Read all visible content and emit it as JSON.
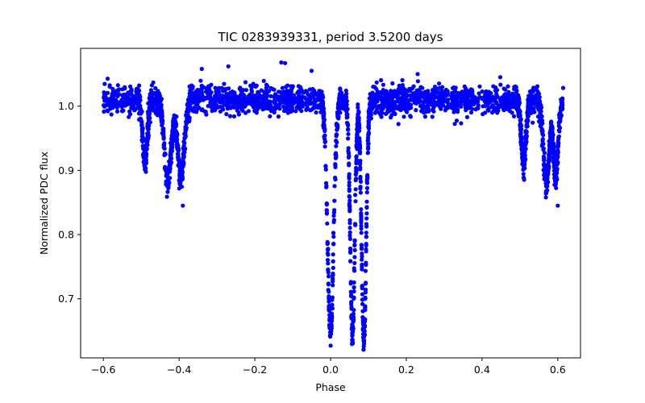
{
  "chart_data": {
    "type": "scatter",
    "title": "TIC 0283939331, period 3.5200 days",
    "xlabel": "Phase",
    "ylabel": "Normalized PDC flux",
    "xlim": [
      -0.66,
      0.66
    ],
    "ylim": [
      0.608,
      1.09
    ],
    "xticks": [
      -0.6,
      -0.4,
      -0.2,
      0.0,
      0.2,
      0.4,
      0.6
    ],
    "xtick_labels": [
      "−0.6",
      "−0.4",
      "−0.2",
      "0.0",
      "0.2",
      "0.4",
      "0.6"
    ],
    "yticks": [
      0.7,
      0.8,
      0.9,
      1.0
    ],
    "ytick_labels": [
      "0.7",
      "0.8",
      "0.9",
      "1.0"
    ],
    "grid": false,
    "series": [
      {
        "name": "flux",
        "color": "#0000ff",
        "baseline": 1.01,
        "phase_range": [
          -0.6,
          0.6
        ],
        "dips": [
          {
            "center": -0.49,
            "depth": 0.1,
            "width": 0.006
          },
          {
            "center": -0.43,
            "depth": 0.13,
            "width": 0.009
          },
          {
            "center": -0.395,
            "depth": 0.12,
            "width": 0.009
          },
          {
            "center": 0.0,
            "depth": 0.36,
            "width": 0.008
          },
          {
            "center": 0.058,
            "depth": 0.37,
            "width": 0.006
          },
          {
            "center": 0.088,
            "depth": 0.38,
            "width": 0.006
          },
          {
            "center": 0.51,
            "depth": 0.1,
            "width": 0.006
          },
          {
            "center": 0.57,
            "depth": 0.13,
            "width": 0.008
          },
          {
            "center": 0.595,
            "depth": 0.12,
            "width": 0.006
          }
        ],
        "outliers": [
          {
            "x": -0.13,
            "y": 1.068
          },
          {
            "x": -0.12,
            "y": 1.067
          },
          {
            "x": -0.34,
            "y": 1.058
          },
          {
            "x": -0.27,
            "y": 1.062
          },
          {
            "x": -0.05,
            "y": 1.055
          },
          {
            "x": 0.23,
            "y": 1.05
          },
          {
            "x": -0.39,
            "y": 0.845
          },
          {
            "x": 0.6,
            "y": 0.845
          }
        ]
      }
    ]
  }
}
